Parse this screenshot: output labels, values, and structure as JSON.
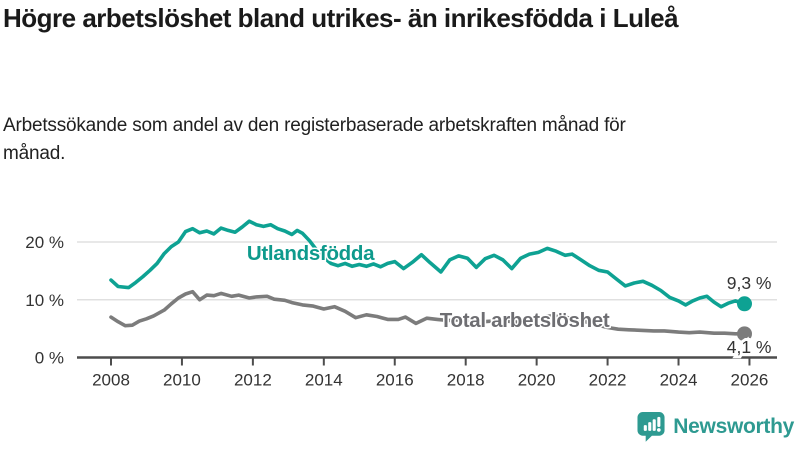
{
  "header": {
    "title": "Högre arbetslöshet bland utrikes- än inrikesfödda i Luleå",
    "subtitle": "Arbetssökande som andel av den registerbaserade arbetskraften månad för månad."
  },
  "branding": {
    "logo_text": "Newsworthy",
    "logo_icon": "bar-chart-speech-bubble-icon",
    "brand_color": "#2E9A91"
  },
  "chart_data": {
    "type": "line",
    "unit": "%",
    "x_axis": {
      "ticks": [
        2008,
        2010,
        2012,
        2014,
        2016,
        2018,
        2020,
        2022,
        2024,
        2026
      ],
      "range": [
        2007.0,
        2026.8
      ]
    },
    "y_axis": {
      "ticks": [
        {
          "value": 0,
          "label": "0 %"
        },
        {
          "value": 10,
          "label": "10 %"
        },
        {
          "value": 20,
          "label": "20 %"
        }
      ],
      "range": [
        0,
        26
      ],
      "grid": true
    },
    "colors": {
      "axis": "#4D4D4D",
      "grid": "#E0E0E0",
      "tick_text": "#333333",
      "end_label_text": "#333333"
    },
    "series": [
      {
        "name": "Utlandsfödda",
        "color": "#0EA293",
        "label_color": "#0E9A8C",
        "end_label": "9,3 %",
        "end_label_position": "above",
        "label_anchor": {
          "year": 2011.83,
          "value": 16.9
        },
        "points": [
          [
            2008.0,
            13.4
          ],
          [
            2008.2,
            12.3
          ],
          [
            2008.5,
            12.1
          ],
          [
            2008.7,
            13.0
          ],
          [
            2008.9,
            14.0
          ],
          [
            2009.1,
            15.1
          ],
          [
            2009.3,
            16.3
          ],
          [
            2009.5,
            18.0
          ],
          [
            2009.7,
            19.2
          ],
          [
            2009.9,
            20.0
          ],
          [
            2010.1,
            21.8
          ],
          [
            2010.3,
            22.3
          ],
          [
            2010.5,
            21.6
          ],
          [
            2010.7,
            21.9
          ],
          [
            2010.9,
            21.4
          ],
          [
            2011.1,
            22.4
          ],
          [
            2011.3,
            22.0
          ],
          [
            2011.5,
            21.7
          ],
          [
            2011.7,
            22.6
          ],
          [
            2011.9,
            23.6
          ],
          [
            2012.1,
            23.0
          ],
          [
            2012.3,
            22.7
          ],
          [
            2012.5,
            23.0
          ],
          [
            2012.7,
            22.3
          ],
          [
            2012.9,
            21.9
          ],
          [
            2013.1,
            21.3
          ],
          [
            2013.25,
            22.0
          ],
          [
            2013.4,
            21.5
          ],
          [
            2013.6,
            20.2
          ],
          [
            2013.8,
            18.6
          ],
          [
            2014.0,
            17.3
          ],
          [
            2014.2,
            16.3
          ],
          [
            2014.4,
            15.9
          ],
          [
            2014.6,
            16.3
          ],
          [
            2014.8,
            15.8
          ],
          [
            2015.0,
            16.1
          ],
          [
            2015.2,
            15.8
          ],
          [
            2015.4,
            16.2
          ],
          [
            2015.6,
            15.7
          ],
          [
            2015.8,
            16.3
          ],
          [
            2016.0,
            16.6
          ],
          [
            2016.25,
            15.4
          ],
          [
            2016.5,
            16.5
          ],
          [
            2016.75,
            17.8
          ],
          [
            2017.0,
            16.4
          ],
          [
            2017.3,
            14.8
          ],
          [
            2017.55,
            16.9
          ],
          [
            2017.8,
            17.6
          ],
          [
            2018.05,
            17.2
          ],
          [
            2018.3,
            15.6
          ],
          [
            2018.55,
            17.1
          ],
          [
            2018.8,
            17.7
          ],
          [
            2019.05,
            16.9
          ],
          [
            2019.3,
            15.4
          ],
          [
            2019.55,
            17.2
          ],
          [
            2019.8,
            17.9
          ],
          [
            2020.05,
            18.2
          ],
          [
            2020.3,
            18.9
          ],
          [
            2020.55,
            18.4
          ],
          [
            2020.8,
            17.7
          ],
          [
            2021.0,
            17.9
          ],
          [
            2021.25,
            16.9
          ],
          [
            2021.5,
            15.9
          ],
          [
            2021.75,
            15.1
          ],
          [
            2022.0,
            14.8
          ],
          [
            2022.25,
            13.6
          ],
          [
            2022.5,
            12.4
          ],
          [
            2022.75,
            12.9
          ],
          [
            2023.0,
            13.2
          ],
          [
            2023.25,
            12.5
          ],
          [
            2023.5,
            11.6
          ],
          [
            2023.75,
            10.4
          ],
          [
            2024.0,
            9.8
          ],
          [
            2024.2,
            9.1
          ],
          [
            2024.4,
            9.8
          ],
          [
            2024.6,
            10.3
          ],
          [
            2024.8,
            10.6
          ],
          [
            2025.0,
            9.6
          ],
          [
            2025.2,
            8.8
          ],
          [
            2025.4,
            9.4
          ],
          [
            2025.6,
            9.8
          ],
          [
            2025.86,
            9.3
          ]
        ]
      },
      {
        "name": "Total arbetslöshet",
        "color": "#7C7C7C",
        "label_color": "#6E6E72",
        "end_label": "4,1 %",
        "end_label_position": "below",
        "label_anchor": {
          "year": 2017.27,
          "value": 5.28
        },
        "points": [
          [
            2008.0,
            7.0
          ],
          [
            2008.2,
            6.2
          ],
          [
            2008.4,
            5.5
          ],
          [
            2008.6,
            5.6
          ],
          [
            2008.8,
            6.3
          ],
          [
            2009.0,
            6.7
          ],
          [
            2009.2,
            7.2
          ],
          [
            2009.5,
            8.2
          ],
          [
            2009.7,
            9.3
          ],
          [
            2009.9,
            10.3
          ],
          [
            2010.1,
            11.0
          ],
          [
            2010.3,
            11.4
          ],
          [
            2010.5,
            10.0
          ],
          [
            2010.7,
            10.8
          ],
          [
            2010.9,
            10.7
          ],
          [
            2011.1,
            11.1
          ],
          [
            2011.4,
            10.6
          ],
          [
            2011.6,
            10.8
          ],
          [
            2011.9,
            10.3
          ],
          [
            2012.1,
            10.5
          ],
          [
            2012.4,
            10.6
          ],
          [
            2012.6,
            10.1
          ],
          [
            2012.9,
            9.9
          ],
          [
            2013.1,
            9.5
          ],
          [
            2013.4,
            9.1
          ],
          [
            2013.7,
            8.9
          ],
          [
            2014.0,
            8.4
          ],
          [
            2014.3,
            8.8
          ],
          [
            2014.6,
            8.0
          ],
          [
            2014.9,
            6.9
          ],
          [
            2015.2,
            7.4
          ],
          [
            2015.5,
            7.1
          ],
          [
            2015.8,
            6.6
          ],
          [
            2016.1,
            6.6
          ],
          [
            2016.3,
            7.0
          ],
          [
            2016.6,
            5.9
          ],
          [
            2016.9,
            6.8
          ],
          [
            2017.2,
            6.6
          ],
          [
            2017.5,
            6.4
          ],
          [
            2018.0,
            6.6
          ],
          [
            2018.5,
            6.2
          ],
          [
            2019.0,
            6.4
          ],
          [
            2019.5,
            6.1
          ],
          [
            2020.0,
            6.8
          ],
          [
            2020.4,
            7.2
          ],
          [
            2020.8,
            7.0
          ],
          [
            2021.2,
            6.5
          ],
          [
            2021.6,
            5.8
          ],
          [
            2022.0,
            5.2
          ],
          [
            2022.3,
            4.9
          ],
          [
            2022.6,
            4.8
          ],
          [
            2023.0,
            4.7
          ],
          [
            2023.3,
            4.6
          ],
          [
            2023.6,
            4.6
          ],
          [
            2024.0,
            4.4
          ],
          [
            2024.3,
            4.3
          ],
          [
            2024.6,
            4.4
          ],
          [
            2025.0,
            4.2
          ],
          [
            2025.3,
            4.2
          ],
          [
            2025.6,
            4.1
          ],
          [
            2025.86,
            4.1
          ]
        ]
      }
    ]
  }
}
